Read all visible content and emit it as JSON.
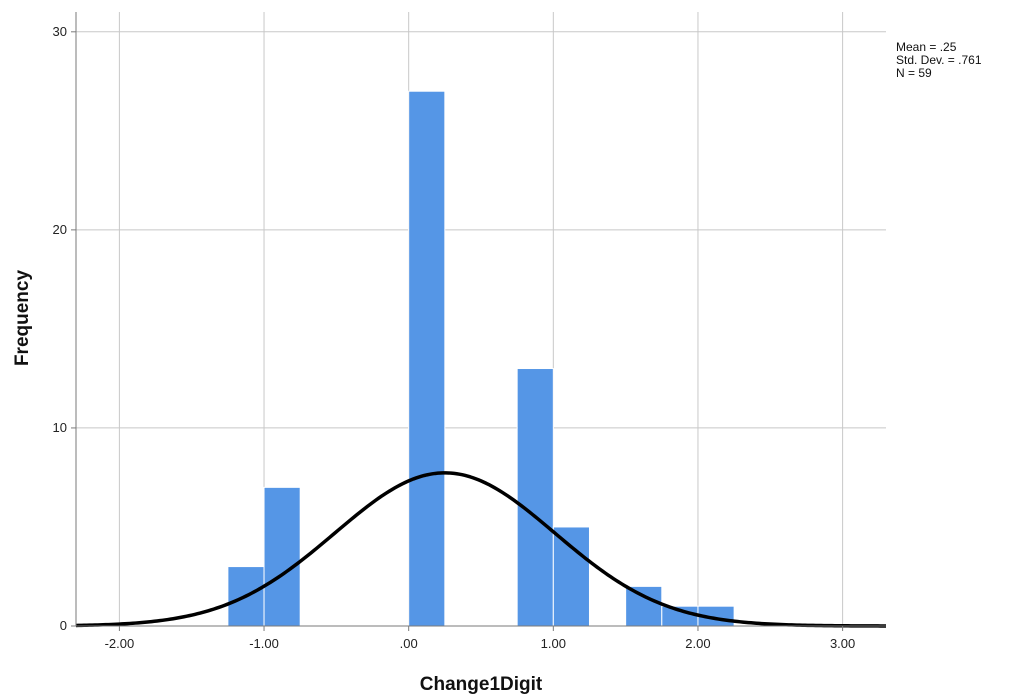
{
  "chart_data": {
    "type": "histogram",
    "xlabel": "Change1Digit",
    "ylabel": "Frequency",
    "xlim": [
      -2.3,
      3.3
    ],
    "ylim": [
      0,
      31
    ],
    "x_ticks": [
      {
        "value": -2,
        "label": "-2.00"
      },
      {
        "value": -1,
        "label": "-1.00"
      },
      {
        "value": 0,
        "label": ".00"
      },
      {
        "value": 1,
        "label": "1.00"
      },
      {
        "value": 2,
        "label": "2.00"
      },
      {
        "value": 3,
        "label": "3.00"
      }
    ],
    "y_ticks": [
      {
        "value": 0,
        "label": "0"
      },
      {
        "value": 10,
        "label": "10"
      },
      {
        "value": 20,
        "label": "20"
      },
      {
        "value": 30,
        "label": "30"
      }
    ],
    "bin_width": 0.25,
    "bins": [
      {
        "start": -1.25,
        "end": -1.0,
        "count": 3
      },
      {
        "start": -1.0,
        "end": -0.75,
        "count": 7
      },
      {
        "start": 0.0,
        "end": 0.25,
        "count": 27
      },
      {
        "start": 0.75,
        "end": 1.0,
        "count": 13
      },
      {
        "start": 1.0,
        "end": 1.25,
        "count": 5
      },
      {
        "start": 1.5,
        "end": 1.75,
        "count": 2
      },
      {
        "start": 1.75,
        "end": 2.0,
        "count": 1
      },
      {
        "start": 2.0,
        "end": 2.25,
        "count": 1
      }
    ],
    "normal_curve": {
      "mean": 0.25,
      "std_dev": 0.761,
      "n": 59
    },
    "stats_text": [
      "Mean = .25",
      "Std. Dev. = .761",
      "N = 59"
    ],
    "grid": true,
    "colors": {
      "bar": "#5596e6",
      "bar_edge": "#ffffff",
      "grid": "#c8c8c8",
      "curve": "#000000",
      "axis": "#7a7a7a"
    }
  }
}
